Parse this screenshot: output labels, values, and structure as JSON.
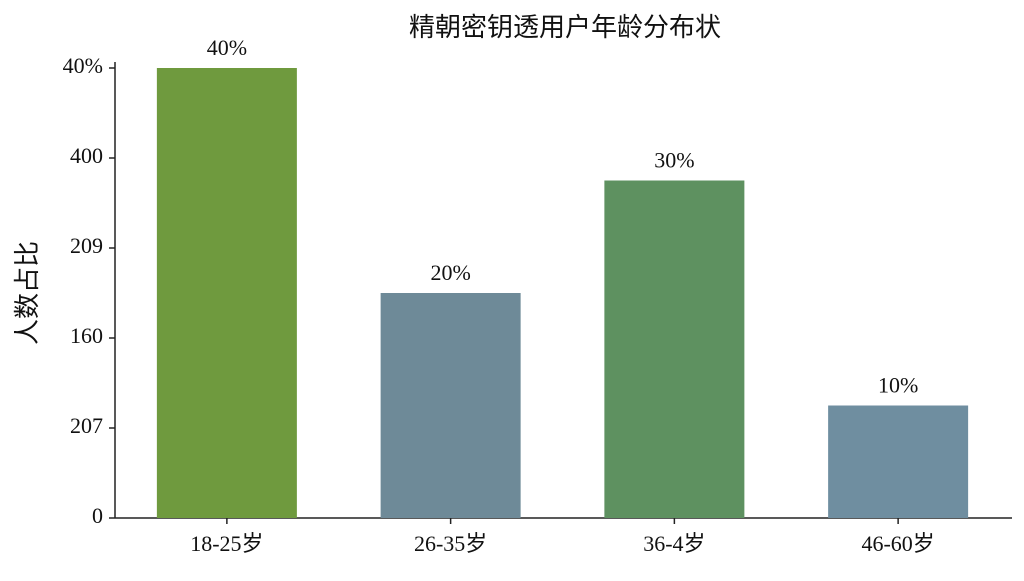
{
  "chart_data": {
    "type": "bar",
    "title": "精朝密钥透用户年龄分布状",
    "y_label": "人数占比",
    "categories": [
      "18-25岁",
      "26-35岁",
      "36-4岁",
      "46-60岁"
    ],
    "values": [
      40,
      20,
      30,
      10
    ],
    "value_labels": [
      "40%",
      "20%",
      "30%",
      "10%"
    ],
    "colors": [
      "#6f9a3e",
      "#6e8a98",
      "#5e9160",
      "#6f8ea0"
    ],
    "ylim": [
      0,
      40
    ],
    "yticks": [
      0,
      {
        "value": 8,
        "label": "207"
      },
      {
        "value": 16,
        "label": "160"
      },
      {
        "value": 24,
        "label": "209"
      },
      {
        "value": 32,
        "label": "400"
      },
      {
        "value": 40,
        "label": "40%"
      }
    ]
  }
}
